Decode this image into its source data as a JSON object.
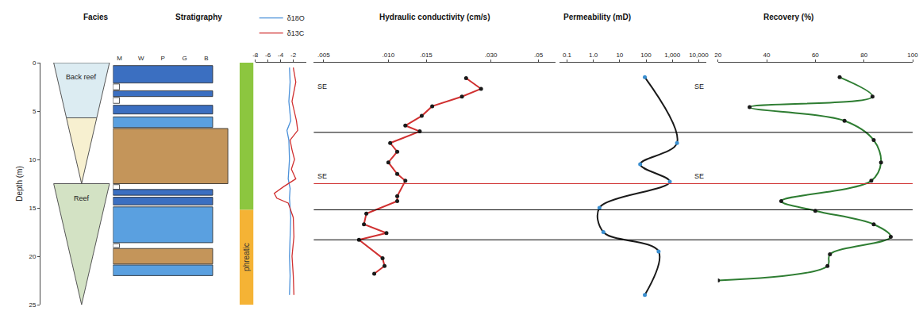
{
  "chart_data": {
    "type": "well_log",
    "y_title": "Depth (m)",
    "ylim": [
      0,
      25
    ],
    "yticks": [
      0,
      5,
      10,
      15,
      20,
      25
    ],
    "facies": {
      "title": "Facies",
      "bodies": [
        {
          "label": "Back reef",
          "from": 0,
          "to": 12.5,
          "bands": [
            {
              "from": 0,
              "to": 5.7,
              "color": "#dcecf2"
            },
            {
              "from": 5.7,
              "to": 12.5,
              "color": "#f7f0d0"
            }
          ]
        },
        {
          "label": "Reef",
          "from": 12.5,
          "to": 25,
          "bands": [
            {
              "from": 12.5,
              "to": 25,
              "color": "#d3e2c4"
            }
          ]
        }
      ]
    },
    "stratigraphy": {
      "title": "Stratigraphy",
      "xlim": [
        0,
        5.6
      ],
      "xticks": [
        {
          "value": 0.3,
          "label": "M"
        },
        {
          "value": 1.3,
          "label": "W"
        },
        {
          "value": 2.3,
          "label": "P"
        },
        {
          "value": 3.3,
          "label": "G"
        },
        {
          "value": 4.3,
          "label": "B"
        }
      ],
      "beds": [
        {
          "from": 0.3,
          "to": 2.1,
          "texture": 4.6,
          "color": "#3b6fc1"
        },
        {
          "from": 2.2,
          "to": 2.8,
          "texture": 0.3,
          "color": "#ffffff"
        },
        {
          "from": 2.9,
          "to": 3.5,
          "texture": 4.6,
          "color": "#3b6fc1"
        },
        {
          "from": 3.6,
          "to": 4.2,
          "texture": 0.3,
          "color": "#ffffff"
        },
        {
          "from": 4.4,
          "to": 5.3,
          "texture": 4.6,
          "color": "#3b6fc1"
        },
        {
          "from": 5.6,
          "to": 6.7,
          "texture": 4.6,
          "color": "#5aa0e0"
        },
        {
          "from": 6.8,
          "to": 12.5,
          "texture": 5.3,
          "color": "#c4955a"
        },
        {
          "from": 12.6,
          "to": 13.1,
          "texture": 0.3,
          "color": "#ffffff"
        },
        {
          "from": 13.1,
          "to": 13.7,
          "texture": 4.6,
          "color": "#3b6fc1"
        },
        {
          "from": 13.9,
          "to": 14.7,
          "texture": 4.6,
          "color": "#3b6fc1"
        },
        {
          "from": 14.9,
          "to": 18.6,
          "texture": 4.6,
          "color": "#5aa0e0"
        },
        {
          "from": 18.7,
          "to": 19.1,
          "texture": 0.3,
          "color": "#ffffff"
        },
        {
          "from": 19.2,
          "to": 20.8,
          "texture": 4.6,
          "color": "#c4955a"
        },
        {
          "from": 20.9,
          "to": 22.0,
          "texture": 4.6,
          "color": "#5aa0e0"
        }
      ]
    },
    "zones": [
      {
        "from": 0,
        "to": 15.2,
        "color": "#8cc63f"
      },
      {
        "from": 15.2,
        "to": 25,
        "color": "#f5b335",
        "label": "phreatic"
      }
    ],
    "isotopes": {
      "xlim": [
        -8,
        0
      ],
      "xticks": [
        -8,
        -6,
        -4,
        -2
      ],
      "series": [
        {
          "name": "δ18O",
          "color": "#4a90d9",
          "depth": [
            0.5,
            2,
            4,
            6,
            7,
            8,
            10,
            12,
            13,
            14,
            16,
            18,
            20,
            22,
            24
          ],
          "values": [
            -2.6,
            -2.5,
            -2.7,
            -2.4,
            -3.0,
            -2.7,
            -2.6,
            -2.8,
            -2.5,
            -2.6,
            -2.4,
            -2.5,
            -2.6,
            -2.5,
            -2.6
          ]
        },
        {
          "name": "δ13C",
          "color": "#d03030",
          "depth": [
            0.5,
            2,
            4,
            6,
            7,
            8,
            9,
            10,
            11,
            12,
            12.8,
            13.5,
            14,
            14.5,
            16,
            18,
            20,
            22,
            24
          ],
          "values": [
            -2.0,
            -1.6,
            -2.2,
            -1.5,
            -1.3,
            -2.5,
            -2.2,
            -1.8,
            -2.3,
            -1.6,
            -3.5,
            -5.0,
            -4.6,
            -2.8,
            -2.0,
            -1.9,
            -2.2,
            -2.0,
            -1.9
          ]
        }
      ]
    },
    "conductivity": {
      "title": "Hydraulic conductivity (cm/s)",
      "log": "x",
      "xlim": [
        0.0045,
        0.06
      ],
      "xticks": [
        {
          "value": 0.005,
          "label": ".005"
        },
        {
          "value": 0.01,
          "label": ".010"
        },
        {
          "value": 0.015,
          "label": ".015"
        },
        {
          "value": 0.03,
          "label": ".030"
        },
        {
          "value": 0.05,
          "label": ".05"
        }
      ],
      "color": "#d03030",
      "marker": "circle",
      "depth": [
        1.6,
        2.7,
        3.5,
        4.5,
        5.5,
        6.5,
        7.1,
        8.3,
        9.2,
        10.3,
        11.5,
        12.2,
        13.8,
        14.3,
        15.6,
        16.7,
        17.6,
        18.3,
        20.2,
        21.0,
        21.8
      ],
      "values": [
        0.023,
        0.027,
        0.022,
        0.016,
        0.0143,
        0.012,
        0.014,
        0.0102,
        0.011,
        0.01,
        0.011,
        0.012,
        0.011,
        0.011,
        0.0079,
        0.0077,
        0.0098,
        0.0073,
        0.0094,
        0.0096,
        0.0086
      ]
    },
    "permeability": {
      "title": "Permeability (mD)",
      "log": "x",
      "xlim": [
        0.05,
        20000
      ],
      "xticks": [
        0.1,
        {
          "value": 1,
          "label": "1.0"
        },
        10,
        100,
        {
          "value": 1000,
          "label": "1,000"
        },
        {
          "value": 10000,
          "label": "10,000"
        }
      ],
      "color": "#1a1a1a",
      "marker": "circle",
      "depth": [
        1.5,
        8.3,
        10.5,
        12.3,
        15.0,
        17.5,
        19.5,
        24.0
      ],
      "values": [
        90,
        1500,
        60,
        800,
        1.7,
        2.4,
        300,
        90
      ],
      "colors": [
        "#3a8fd0",
        "#3a8fd0",
        "#3a8fd0",
        "#3a8fd0",
        "#3a8fd0",
        "#3a8fd0",
        "#3a8fd0",
        "#3a8fd0"
      ]
    },
    "recovery": {
      "title": "Recovery (%)",
      "xlim": [
        20,
        100
      ],
      "xticks": [
        20,
        40,
        60,
        80,
        100
      ],
      "color": "#2e7d32",
      "marker": "circle",
      "depth": [
        1.5,
        3.5,
        4.6,
        6.0,
        8.0,
        10.3,
        12.2,
        14.3,
        15.3,
        16.7,
        18.0,
        19.8,
        21.0,
        22.5
      ],
      "values": [
        70,
        83.5,
        33,
        72,
        84,
        87,
        83,
        46,
        60,
        84,
        91,
        66,
        65,
        20
      ]
    },
    "boundaries": [
      {
        "depth": 7.2,
        "color": "#000000"
      },
      {
        "depth": 12.5,
        "color": "#d03030"
      },
      {
        "depth": 15.2,
        "color": "#000000"
      },
      {
        "depth": 18.3,
        "color": "#000000"
      }
    ],
    "annotations": [
      {
        "text": "SE",
        "depth": 3,
        "panel": "conductivity",
        "side": "left"
      },
      {
        "text": "SE",
        "depth": 3,
        "panel": "permeability",
        "side": "right"
      },
      {
        "text": "SE",
        "depth": 12.3,
        "panel": "conductivity",
        "side": "left"
      },
      {
        "text": "SE",
        "depth": 12.3,
        "panel": "permeability",
        "side": "right"
      }
    ]
  }
}
